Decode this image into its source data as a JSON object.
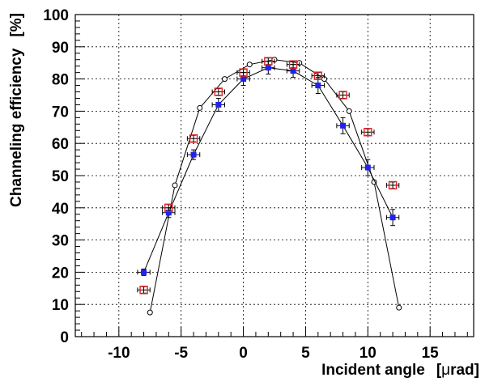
{
  "chart_data": {
    "type": "scatter",
    "title": "",
    "xlabel_parts": [
      "Incident angle",
      "[",
      "μ",
      "rad]"
    ],
    "ylabel_parts": [
      "Channeling efficiency",
      "[%]"
    ],
    "xlim": [
      -13.5,
      18.5
    ],
    "ylim": [
      0,
      100
    ],
    "grid": true,
    "legend": "none",
    "x_ticks": [
      -10,
      -5,
      0,
      5,
      10,
      15
    ],
    "y_ticks": [
      0,
      10,
      20,
      30,
      40,
      50,
      60,
      70,
      80,
      90,
      100
    ],
    "x_tick_labels": [
      "-10",
      "-5",
      "0",
      "5",
      "10",
      "15"
    ],
    "y_tick_labels": [
      "0",
      "10",
      "20",
      "30",
      "40",
      "50",
      "60",
      "70",
      "80",
      "90",
      "100"
    ],
    "series": [
      {
        "marker": "circle-line",
        "color": "#000000",
        "x": [
          -7.5,
          -5.5,
          -3.5,
          -1.5,
          0.5,
          2.5,
          4.5,
          6.5,
          8.5,
          10.5,
          12.5
        ],
        "y": [
          7.5,
          47,
          71,
          80,
          84.5,
          86,
          85,
          80,
          70,
          48,
          9
        ]
      },
      {
        "marker": "blue-square",
        "color": "#2222ee",
        "x": [
          -8,
          -6,
          -4,
          -2,
          0,
          2,
          4,
          6,
          8,
          10,
          12
        ],
        "y": [
          20,
          38.5,
          56.5,
          72,
          80,
          83.5,
          82.5,
          78,
          65.5,
          52.5,
          37
        ],
        "xerr": [
          0.5,
          0.5,
          0.5,
          0.5,
          0.5,
          0.5,
          0.5,
          0.5,
          0.5,
          0.5,
          0.5
        ],
        "yerr": [
          1.0,
          1.5,
          1.5,
          2.0,
          2.0,
          2.0,
          2.0,
          2.5,
          2.5,
          2.5,
          2.5
        ]
      },
      {
        "marker": "red-open-square",
        "color": "#dd2222",
        "x": [
          -8,
          -6,
          -4,
          -2,
          0,
          2,
          4,
          6,
          8,
          10,
          12
        ],
        "y": [
          14.5,
          40,
          61.5,
          76,
          82,
          85.5,
          84.5,
          81,
          75,
          63.5,
          47
        ],
        "xerr": [
          0.5,
          0.5,
          0.5,
          0.5,
          0.5,
          0.5,
          0.5,
          0.5,
          0.5,
          0.5,
          0.5
        ],
        "yerr": [
          1.0,
          1.0,
          1.0,
          1.0,
          1.0,
          1.0,
          1.0,
          1.0,
          1.0,
          1.0,
          1.0
        ]
      }
    ]
  }
}
